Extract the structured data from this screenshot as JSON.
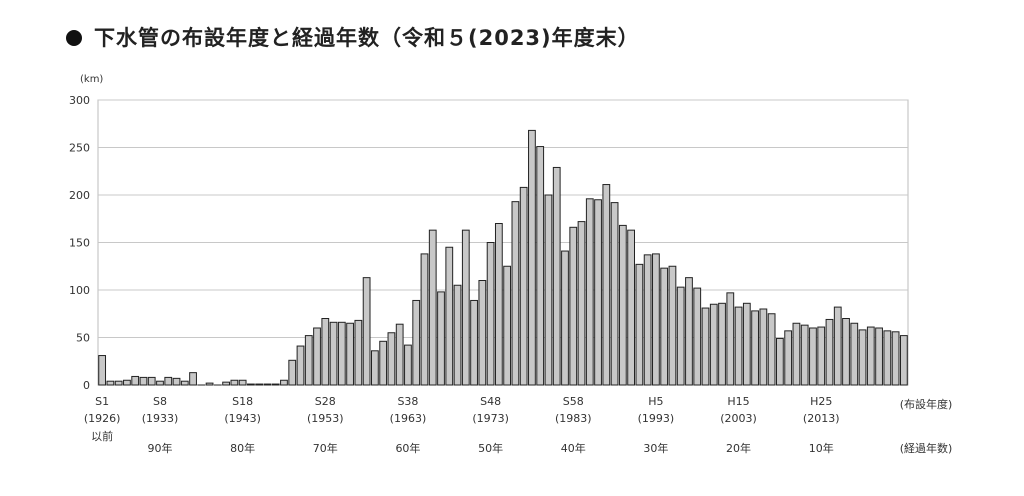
{
  "title": "下水管の布設年度と経過年数（令和５(2023)年度末）",
  "chart_data": {
    "type": "bar",
    "unit_label": "(km)",
    "ylim": [
      0,
      300
    ],
    "yticks": [
      0,
      50,
      100,
      150,
      200,
      250,
      300
    ],
    "grid": true,
    "bar_color": "#c8c8c8",
    "x_start_year": 1926,
    "values": [
      31,
      4,
      4,
      5,
      9,
      8,
      8,
      4,
      8,
      7,
      4,
      13,
      0,
      2,
      0,
      3,
      5,
      5,
      1,
      1,
      1,
      1,
      5,
      26,
      41,
      52,
      60,
      70,
      66,
      66,
      65,
      68,
      113,
      36,
      46,
      55,
      64,
      42,
      89,
      138,
      163,
      98,
      145,
      105,
      163,
      89,
      110,
      150,
      170,
      125,
      193,
      208,
      268,
      251,
      200,
      229,
      141,
      166,
      172,
      196,
      195,
      211,
      192,
      168,
      163,
      127,
      137,
      138,
      123,
      125,
      103,
      113,
      102,
      81,
      85,
      86,
      97,
      82,
      86,
      78,
      80,
      75,
      49,
      57,
      65,
      63,
      60,
      61,
      69,
      82,
      70,
      65,
      58,
      61,
      60,
      57,
      56,
      52
    ],
    "era_labels": [
      {
        "era": "S1",
        "year": "(1926)",
        "extra": "以前",
        "index": 0
      },
      {
        "era": "S8",
        "year": "(1933)",
        "index": 7
      },
      {
        "era": "S18",
        "year": "(1943)",
        "index": 17
      },
      {
        "era": "S28",
        "year": "(1953)",
        "index": 27
      },
      {
        "era": "S38",
        "year": "(1963)",
        "index": 37
      },
      {
        "era": "S48",
        "year": "(1973)",
        "index": 47
      },
      {
        "era": "S58",
        "year": "(1983)",
        "index": 57
      },
      {
        "era": "H5",
        "year": "(1993)",
        "index": 67
      },
      {
        "era": "H15",
        "year": "(2003)",
        "index": 77
      },
      {
        "era": "H25",
        "year": "(2013)",
        "index": 87
      }
    ],
    "elapsed_labels": [
      "90年",
      "80年",
      "70年",
      "60年",
      "50年",
      "40年",
      "30年",
      "20年",
      "10年"
    ],
    "x_axis_label": "(布設年度)",
    "elapsed_axis_label": "(経過年数)"
  }
}
